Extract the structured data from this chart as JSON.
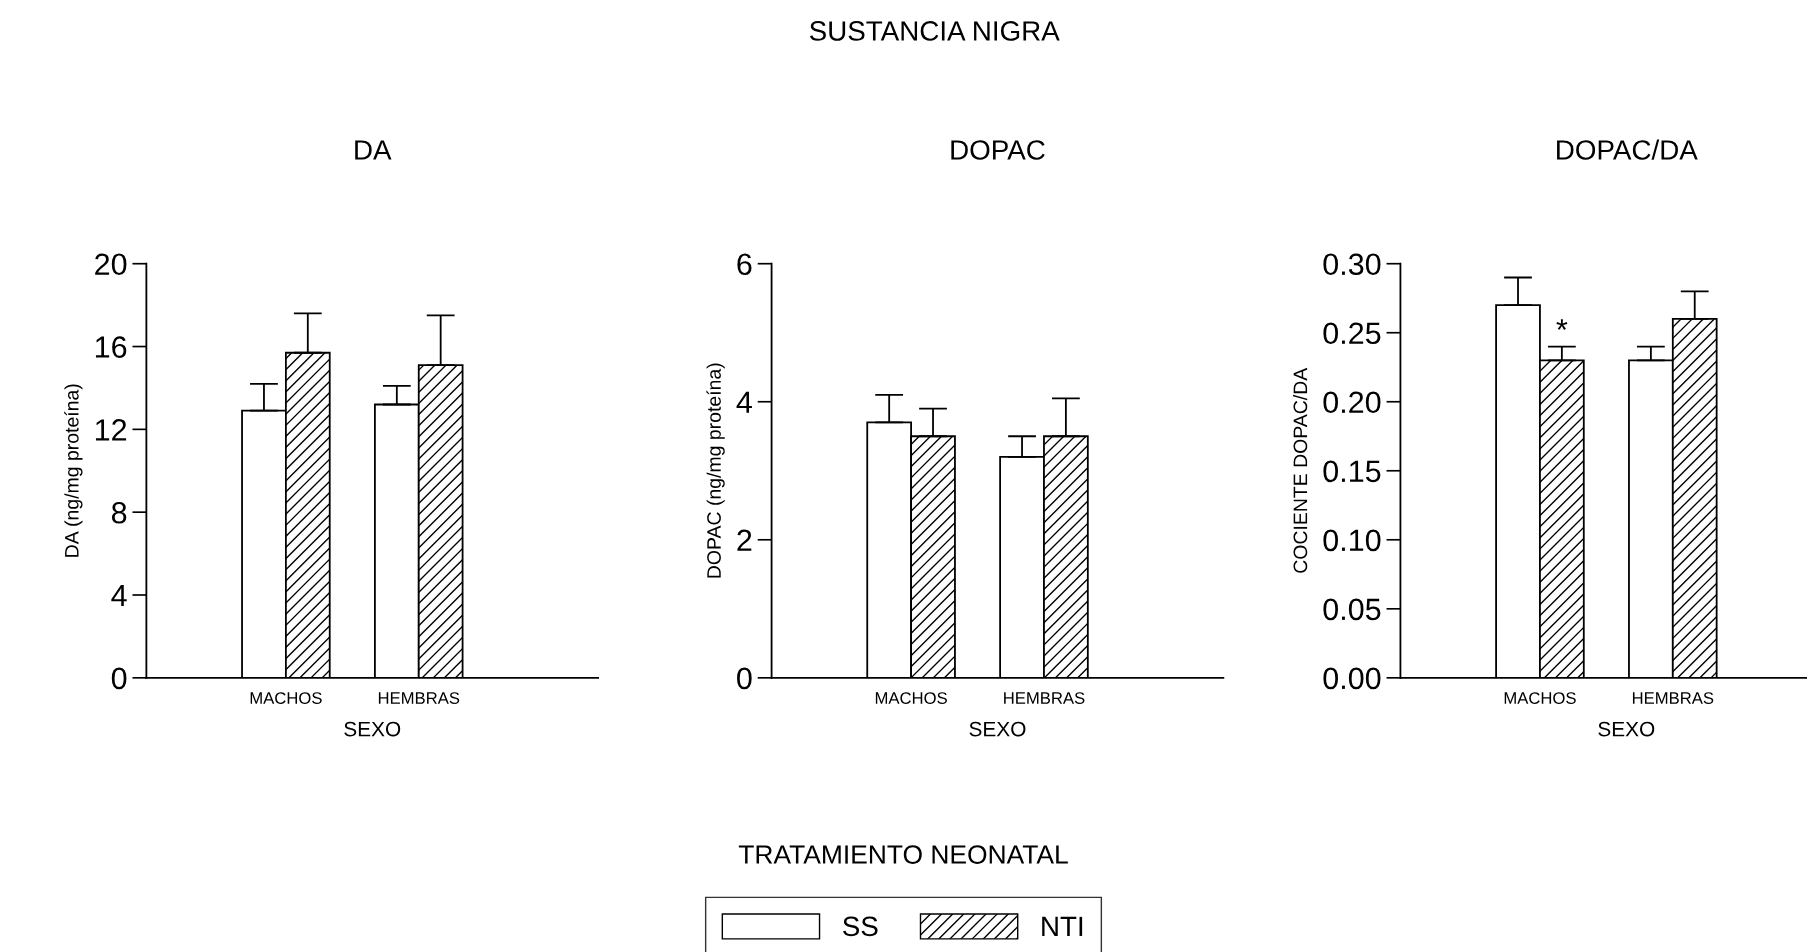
{
  "chart_data": [
    {
      "type": "bar",
      "title": "DA",
      "xlabel": "SEXO",
      "ylabel": "DA (ng/mg proteína)",
      "categories": [
        "MACHOS",
        "HEMBRAS"
      ],
      "ylim": [
        0,
        20
      ],
      "yticks": [
        0,
        4,
        8,
        12,
        16,
        20
      ],
      "legend": "bottom",
      "legend_title": "TRATAMIENTO NEONATAL",
      "series": [
        {
          "name": "SS",
          "color": "#ffffff",
          "values": [
            12.9,
            13.2
          ],
          "errors": [
            1.3,
            0.9
          ]
        },
        {
          "name": "NTI",
          "color": "#000000",
          "values": [
            15.7,
            15.1
          ],
          "errors": [
            1.9,
            2.4
          ]
        }
      ]
    },
    {
      "type": "bar",
      "title": "DOPAC",
      "subtitle": "SUSTANCIA NIGRA",
      "xlabel": "SEXO",
      "ylabel": "DOPAC (ng/mg proteína)",
      "categories": [
        "MACHOS",
        "HEMBRAS"
      ],
      "ylim": [
        0,
        6
      ],
      "yticks": [
        0,
        2,
        4,
        6
      ],
      "series": [
        {
          "color": "#ffffff",
          "values": [
            3.7,
            3.2
          ],
          "errors": [
            0.4,
            0.3
          ]
        },
        {
          "color": "#000000",
          "values": [
            3.5,
            3.5
          ],
          "errors": [
            0.4,
            0.55
          ]
        }
      ]
    },
    {
      "type": "bar",
      "title": "DOPAC/DA",
      "xlabel": "SEXO",
      "ylabel": "COCIENTE DOPAC/DA",
      "categories": [
        "MACHOS",
        "HEMBRAS"
      ],
      "ylim": [
        0,
        0.3
      ],
      "yticks": [
        {
          "value": 0,
          "label": "0.00"
        },
        {
          "value": 0.05,
          "label": "0.05"
        },
        {
          "value": 0.1,
          "label": "0.10"
        },
        {
          "value": 0.15,
          "label": "0.15"
        },
        {
          "value": 0.2,
          "label": "0.20"
        },
        {
          "value": 0.25,
          "label": "0.25"
        },
        {
          "value": 0.3,
          "label": "0.30"
        }
      ],
      "annotations": [
        {
          "text": "*",
          "x": "MACHOS",
          "y": 0.24
        }
      ],
      "series": [
        {
          "color": "#ffffff",
          "values": [
            0.27,
            0.23
          ],
          "errors": [
            0.02,
            0.01
          ]
        },
        {
          "color": "#000000",
          "values": [
            0.23,
            0.26
          ],
          "errors": [
            0.01,
            0.02
          ]
        }
      ]
    }
  ]
}
